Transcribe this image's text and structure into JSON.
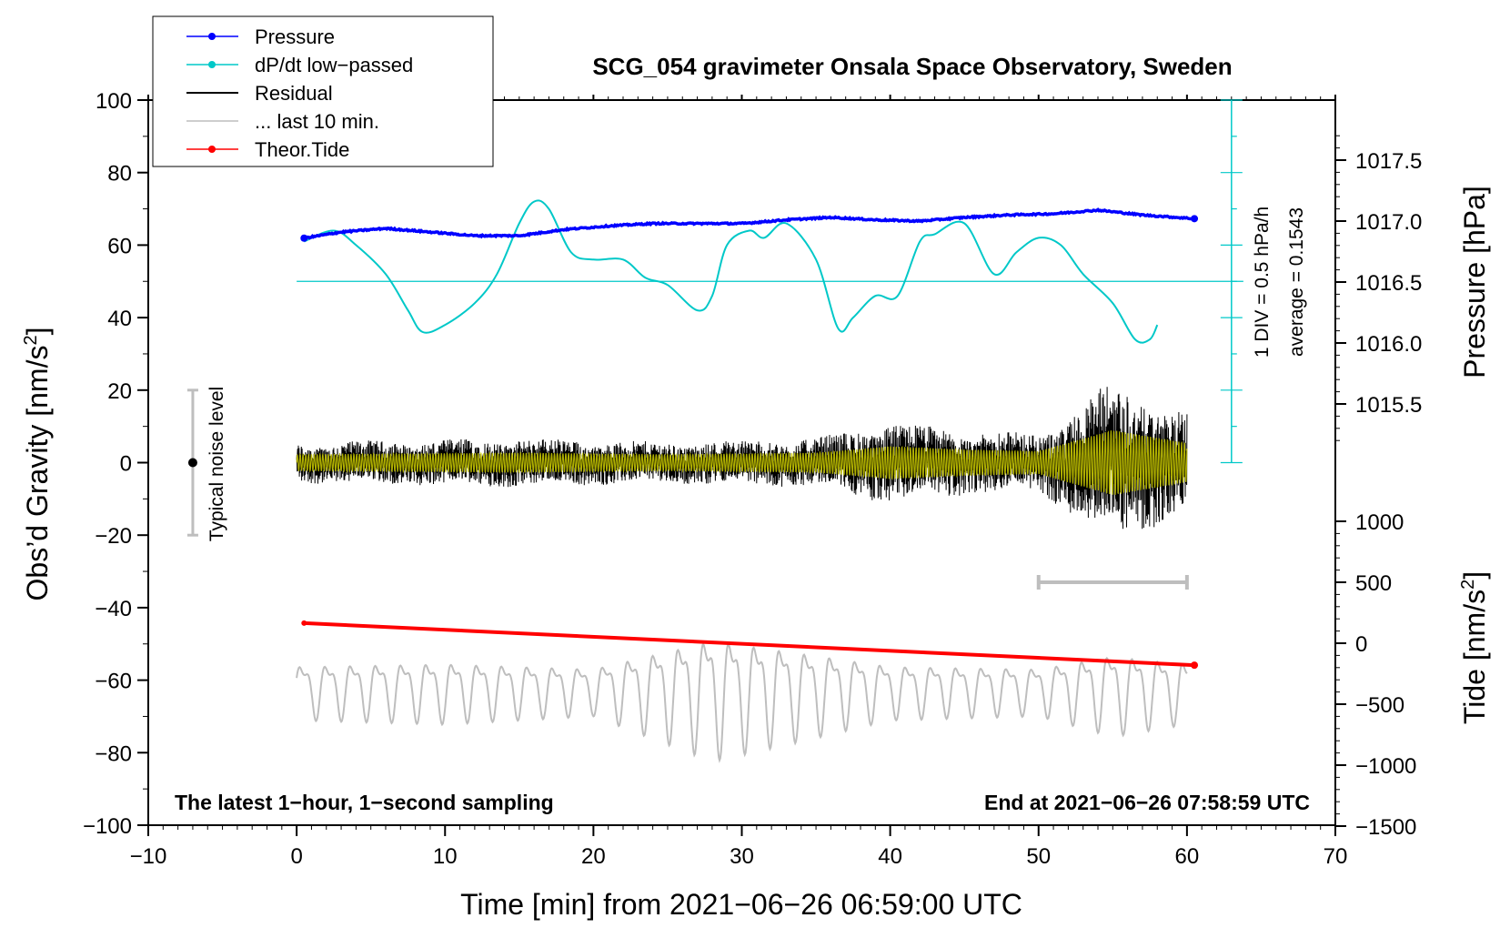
{
  "chart_data": {
    "type": "line",
    "title": "SCG_054 gravimeter Onsala Space Observatory, Sweden",
    "xlabel": "Time [min] from 2021−06−26 06:59:00 UTC",
    "ylabel_left": "Obs’d Gravity [nm/s",
    "ylabel_left_sup": "2",
    "ylabel_left_end": "]",
    "ylabel_right_top": "Pressure [hPa]",
    "ylabel_right_bottom": "Tide [nm/s",
    "ylabel_right_bottom_sup": "2",
    "ylabel_right_bottom_end": "]",
    "xlim": [
      -10,
      70
    ],
    "ylim": [
      -100,
      100
    ],
    "x_ticks": [
      "−10",
      "0",
      "10",
      "20",
      "30",
      "40",
      "50",
      "60",
      "70"
    ],
    "y_ticks": [
      "100",
      "80",
      "60",
      "40",
      "20",
      "0",
      "−20",
      "−40",
      "−60",
      "−80",
      "−100"
    ],
    "pressure_ticks": [
      "1017.5",
      "1017.0",
      "1016.5",
      "1016.0",
      "1015.5"
    ],
    "tide_ticks": [
      "1000",
      "500",
      "0",
      "−500",
      "−1000",
      "−1500"
    ],
    "legend": [
      {
        "label": "Pressure",
        "color": "#0000ff",
        "marker": true
      },
      {
        "label": "dP/dt low−passed",
        "color": "#00c8c8",
        "marker": true
      },
      {
        "label": "Residual",
        "color": "#000000",
        "marker": false
      },
      {
        "label": "... last 10 min.",
        "color": "#bebebe",
        "marker": false
      },
      {
        "label": "Theor.Tide",
        "color": "#ff0000",
        "marker": true
      }
    ],
    "annotations": {
      "noise_label": "Typical noise level",
      "div_label": "1 DIV = 0.5 hPa/h",
      "avg_label": "average = 0.1543",
      "footer_left": "The latest 1−hour, 1−second sampling",
      "footer_right": "End at 2021−06−26 07:58:59 UTC"
    },
    "series": [
      {
        "name": "Pressure",
        "unit": "hPa",
        "x": [
          0.5,
          3,
          6,
          9,
          12,
          15,
          18,
          21,
          24,
          27,
          30,
          33,
          36,
          39,
          42,
          45,
          48,
          51,
          54,
          57,
          60.5
        ],
        "values": [
          1016.86,
          1016.91,
          1016.94,
          1016.91,
          1016.88,
          1016.88,
          1016.93,
          1016.96,
          1016.98,
          1016.98,
          1016.98,
          1017.01,
          1017.03,
          1017.01,
          1017.0,
          1017.03,
          1017.05,
          1017.06,
          1017.09,
          1017.05,
          1017.02
        ]
      },
      {
        "name": "dP/dt low-passed",
        "unit": "nm/s2-equivalent",
        "x": [
          0.5,
          2.5,
          4,
          6,
          7.5,
          8.5,
          10,
          12,
          13.5,
          15,
          16,
          17,
          18.5,
          20,
          22,
          23.5,
          25,
          27,
          28,
          29,
          30.5,
          31.5,
          33,
          35,
          36.5,
          37.5,
          39,
          40.5,
          42,
          43,
          45,
          47,
          48.5,
          50,
          51.5,
          53,
          55,
          56.5,
          57.5,
          58
        ],
        "values": [
          61,
          64,
          60,
          52,
          42,
          36,
          38,
          44,
          52,
          66,
          72,
          70,
          58,
          56,
          56,
          51,
          49,
          42,
          46,
          60,
          64,
          62,
          66,
          56,
          37,
          40,
          46,
          46,
          61,
          63,
          66,
          52,
          58,
          62,
          60,
          52,
          44,
          34,
          34,
          38
        ]
      },
      {
        "name": "Theor.Tide",
        "unit": "nm/s2",
        "x": [
          0.5,
          60.5
        ],
        "values": [
          165,
          -180
        ]
      },
      {
        "name": "Residual",
        "unit": "nm/s2",
        "x_range": [
          0,
          60
        ],
        "amplitude_profile": [
          {
            "x": 0,
            "amp": 5
          },
          {
            "x": 15,
            "amp": 6
          },
          {
            "x": 25,
            "amp": 5
          },
          {
            "x": 35,
            "amp": 6
          },
          {
            "x": 40,
            "amp": 10
          },
          {
            "x": 45,
            "amp": 8
          },
          {
            "x": 50,
            "amp": 7
          },
          {
            "x": 55,
            "amp": 20
          },
          {
            "x": 60,
            "amp": 12
          }
        ]
      },
      {
        "name": "... last 10 min.",
        "unit": "nm/s2",
        "x_range": [
          0,
          60
        ],
        "offset": -62,
        "amplitude_profile": [
          {
            "x": 0,
            "amp": 8
          },
          {
            "x": 10,
            "amp": 9
          },
          {
            "x": 20,
            "amp": 7
          },
          {
            "x": 28,
            "amp": 18
          },
          {
            "x": 33,
            "amp": 14
          },
          {
            "x": 40,
            "amp": 8
          },
          {
            "x": 50,
            "amp": 7
          },
          {
            "x": 55,
            "amp": 12
          },
          {
            "x": 60,
            "amp": 9
          }
        ]
      }
    ],
    "noise_bar": {
      "x": -7,
      "center": 0,
      "range": [
        -20,
        20
      ]
    },
    "last_window_bar": {
      "x": [
        50,
        60
      ],
      "y": -33
    },
    "average_line_y": 50
  }
}
